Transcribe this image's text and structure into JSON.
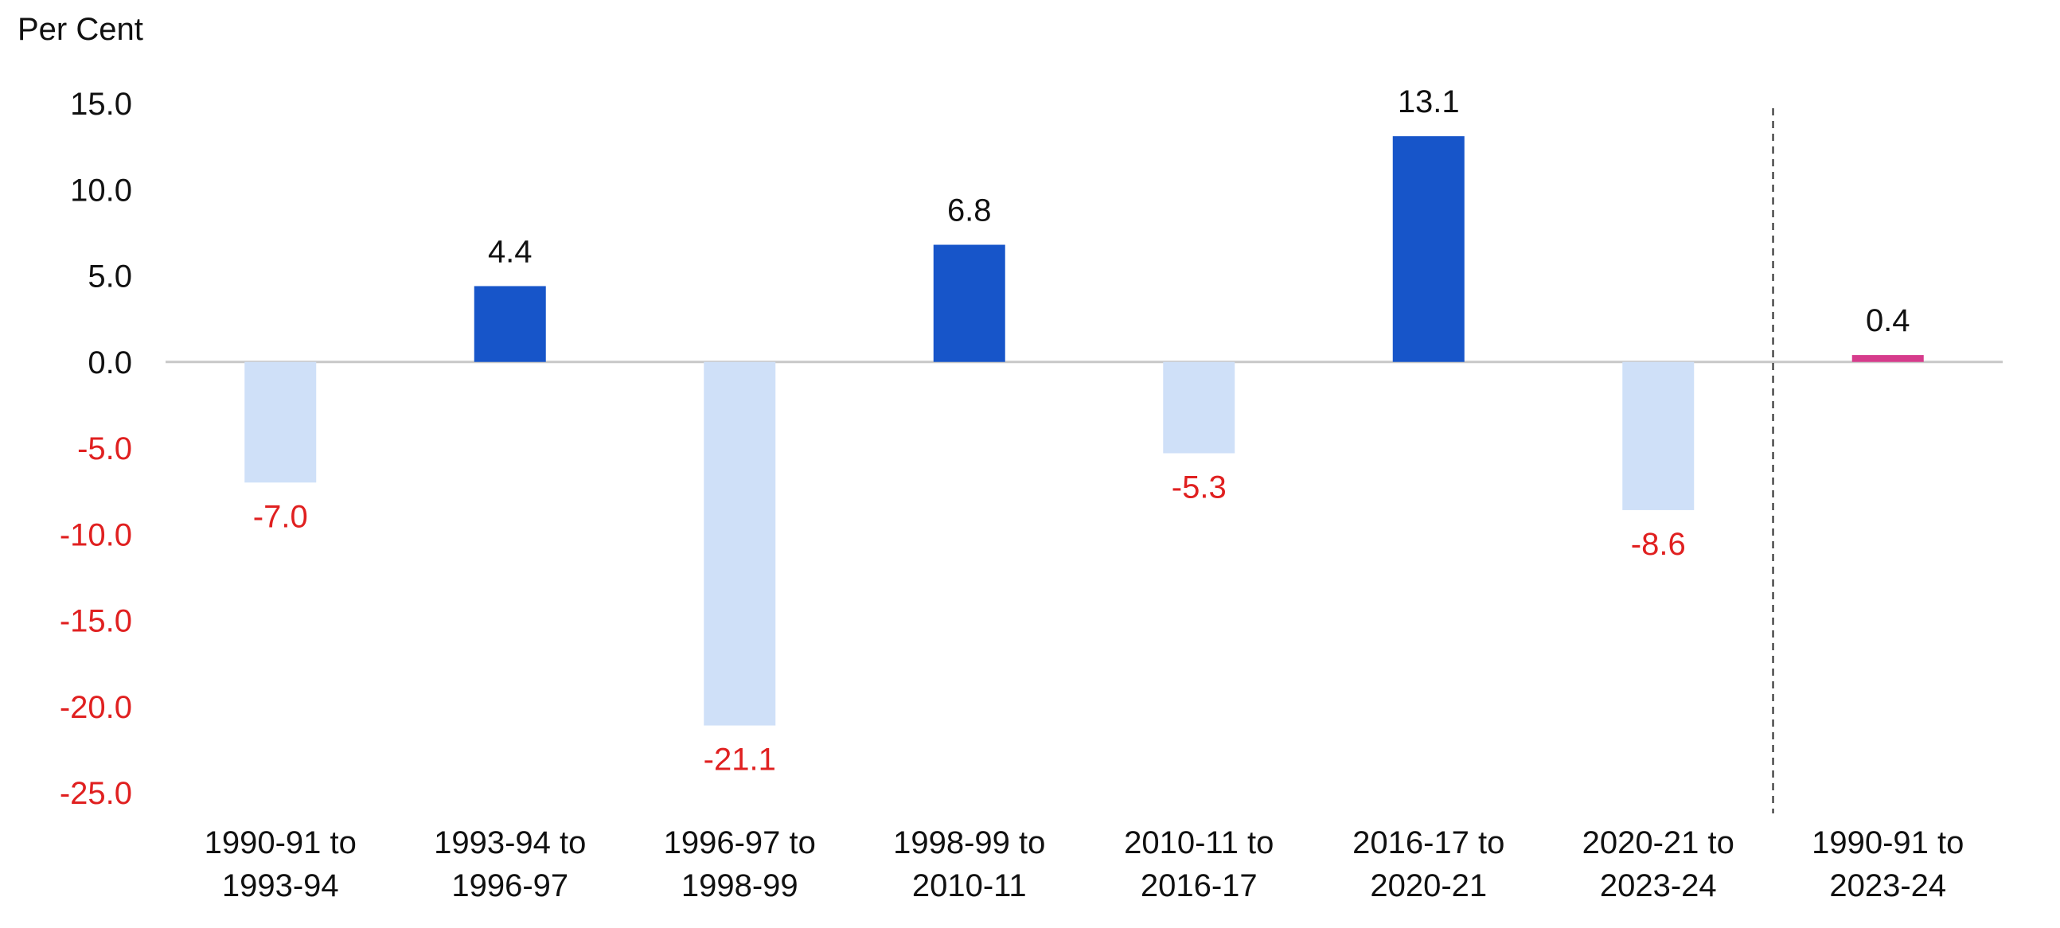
{
  "chart_data": {
    "type": "bar",
    "ylabel": "Per Cent",
    "ylim": [
      -25,
      15
    ],
    "yticks": [
      15,
      10,
      5,
      0,
      -5,
      -10,
      -15,
      -20,
      -25
    ],
    "ytick_labels": [
      "15.0",
      "10.0",
      "5.0",
      "0.0",
      "-5.0",
      "-10.0",
      "-15.0",
      "-20.0",
      "-25.0"
    ],
    "categories": [
      [
        "1990-91 to",
        "1993-94"
      ],
      [
        "1993-94 to",
        "1996-97"
      ],
      [
        "1996-97 to",
        "1998-99"
      ],
      [
        "1998-99 to",
        "2010-11"
      ],
      [
        "2010-11 to",
        "2016-17"
      ],
      [
        "2016-17 to",
        "2020-21"
      ],
      [
        "2020-21 to",
        "2023-24"
      ],
      [
        "1990-91 to",
        "2023-24"
      ]
    ],
    "values": [
      -7.0,
      4.4,
      -21.1,
      6.8,
      -5.3,
      13.1,
      -8.6,
      0.4
    ],
    "value_labels": [
      "-7.0",
      "4.4",
      "-21.1",
      "6.8",
      "-5.3",
      "13.1",
      "-8.6",
      "0.4"
    ],
    "grid": false,
    "legend": "none",
    "separator_before_category": 7,
    "colors": {
      "positive": "#1755c9",
      "negative": "#cfe0f8",
      "total": "#d63c8c",
      "negative_text": "#e02020",
      "positive_text": "#111111",
      "zero_line": "#c8c8c8",
      "separator": "#222222"
    }
  }
}
